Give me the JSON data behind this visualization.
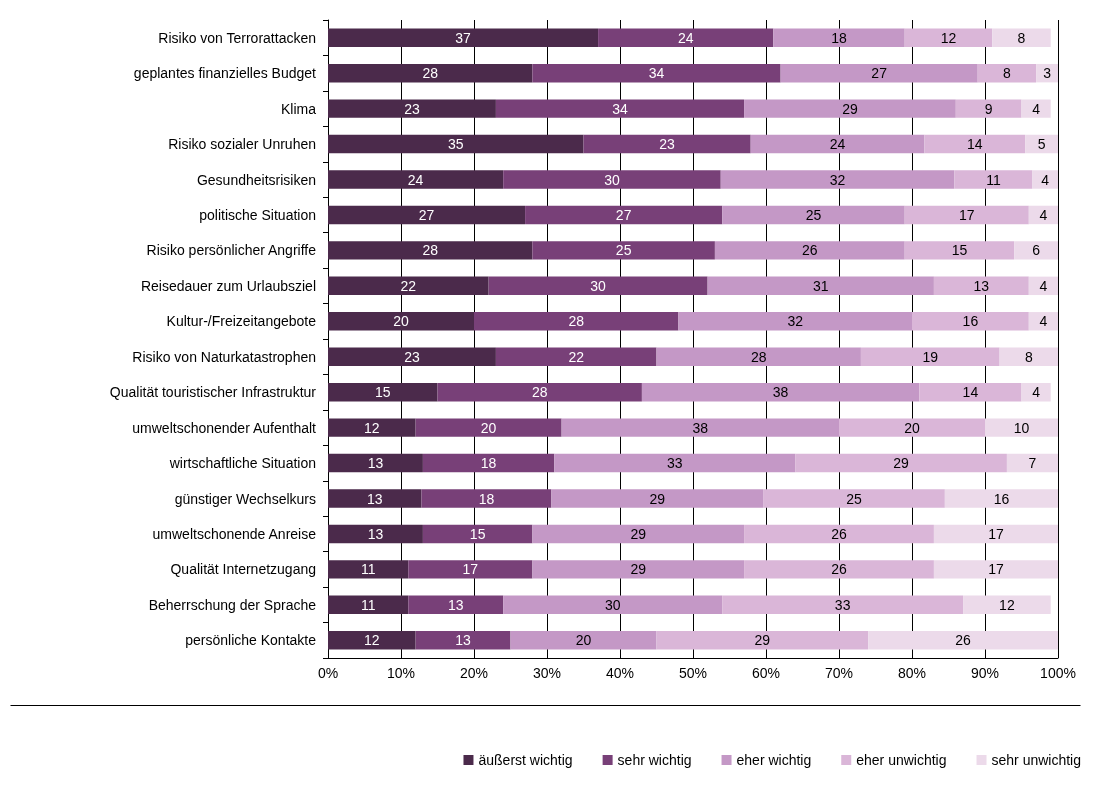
{
  "chart_data": {
    "type": "bar",
    "orientation": "horizontal",
    "stacked": true,
    "grid": "x",
    "legend": "bottom right",
    "categories": [
      "Risiko von Terrorattacken",
      "geplantes finanzielles Budget",
      "Klima",
      "Risiko sozialer Unruhen",
      "Gesundheitsrisiken",
      "politische Situation",
      "Risiko persönlicher Angriffe",
      "Reisedauer zum Urlaubsziel",
      "Kultur-/Freizeitangebote",
      "Risiko von Naturkatastrophen",
      "Qualität touristischer Infrastruktur",
      "umweltschonender Aufenthalt",
      "wirtschaftliche Situation",
      "günstiger Wechselkurs",
      "umweltschonende Anreise",
      "Qualität Internetzugang",
      "Beherrschung der Sprache",
      "persönliche Kontakte"
    ],
    "series": [
      {
        "name": "äußerst wichtig",
        "color": "#4b2a4b",
        "values": [
          37,
          28,
          23,
          35,
          24,
          27,
          28,
          22,
          20,
          23,
          15,
          12,
          13,
          12.8,
          13,
          11,
          11,
          12
        ],
        "value_labels": [
          "37",
          "28",
          "23",
          "35",
          "24",
          "27",
          "28",
          "22",
          "20",
          "23",
          "15",
          "12",
          "13",
          "13",
          "13",
          "11",
          "11",
          "12"
        ]
      },
      {
        "name": "sehr wichtig",
        "color": "#784078",
        "values": [
          24,
          34,
          34,
          22.9,
          29.8,
          27,
          25,
          30,
          28,
          22,
          28,
          20,
          18,
          17.8,
          15,
          17,
          13,
          13
        ],
        "value_labels": [
          "24",
          "34",
          "34",
          "23",
          "30",
          "27",
          "25",
          "30",
          "28",
          "22",
          "28",
          "20",
          "18",
          "18",
          "15",
          "17",
          "13",
          "13"
        ]
      },
      {
        "name": "eher wichtig",
        "color": "#c498c6",
        "values": [
          18,
          27,
          29,
          23.8,
          32,
          25,
          26,
          31,
          32,
          28,
          38,
          38,
          33,
          29,
          29,
          29,
          30,
          20
        ],
        "value_labels": [
          "18",
          "27",
          "29",
          "24",
          "32",
          "25",
          "26",
          "31",
          "32",
          "28",
          "38",
          "38",
          "33",
          "29",
          "29",
          "29",
          "30",
          "20"
        ]
      },
      {
        "name": "eher unwichtig",
        "color": "#dab6d8",
        "values": [
          12,
          8,
          9,
          13.8,
          10.7,
          17,
          15,
          13,
          16,
          19,
          14,
          20,
          29,
          24.9,
          26,
          26,
          33,
          29
        ],
        "value_labels": [
          "12",
          "8",
          "9",
          "14",
          "11",
          "17",
          "15",
          "13",
          "16",
          "19",
          "14",
          "20",
          "29",
          "25",
          "26",
          "26",
          "33",
          "29"
        ]
      },
      {
        "name": "sehr unwichtig",
        "color": "#ecdaea",
        "values": [
          8,
          3,
          4,
          4.5,
          3.5,
          4,
          6,
          4,
          4,
          8,
          4,
          10,
          7,
          15.5,
          17,
          17,
          12,
          26
        ],
        "value_labels": [
          "8",
          "3",
          "4",
          "5",
          "4",
          "4",
          "6",
          "4",
          "4",
          "8",
          "4",
          "10",
          "7",
          "16",
          "17",
          "17",
          "12",
          "26"
        ]
      }
    ],
    "xlim": [
      0,
      100
    ],
    "xticks": [
      {
        "value": 0,
        "label": "0%"
      },
      {
        "value": 10,
        "label": "10%"
      },
      {
        "value": 20,
        "label": "20%"
      },
      {
        "value": 30,
        "label": "30%"
      },
      {
        "value": 40,
        "label": "40%"
      },
      {
        "value": 50,
        "label": "50%"
      },
      {
        "value": 60,
        "label": "60%"
      },
      {
        "value": 70,
        "label": "70%"
      },
      {
        "value": 80,
        "label": "80%"
      },
      {
        "value": 90,
        "label": "90%"
      },
      {
        "value": 100,
        "label": "100%"
      }
    ]
  }
}
